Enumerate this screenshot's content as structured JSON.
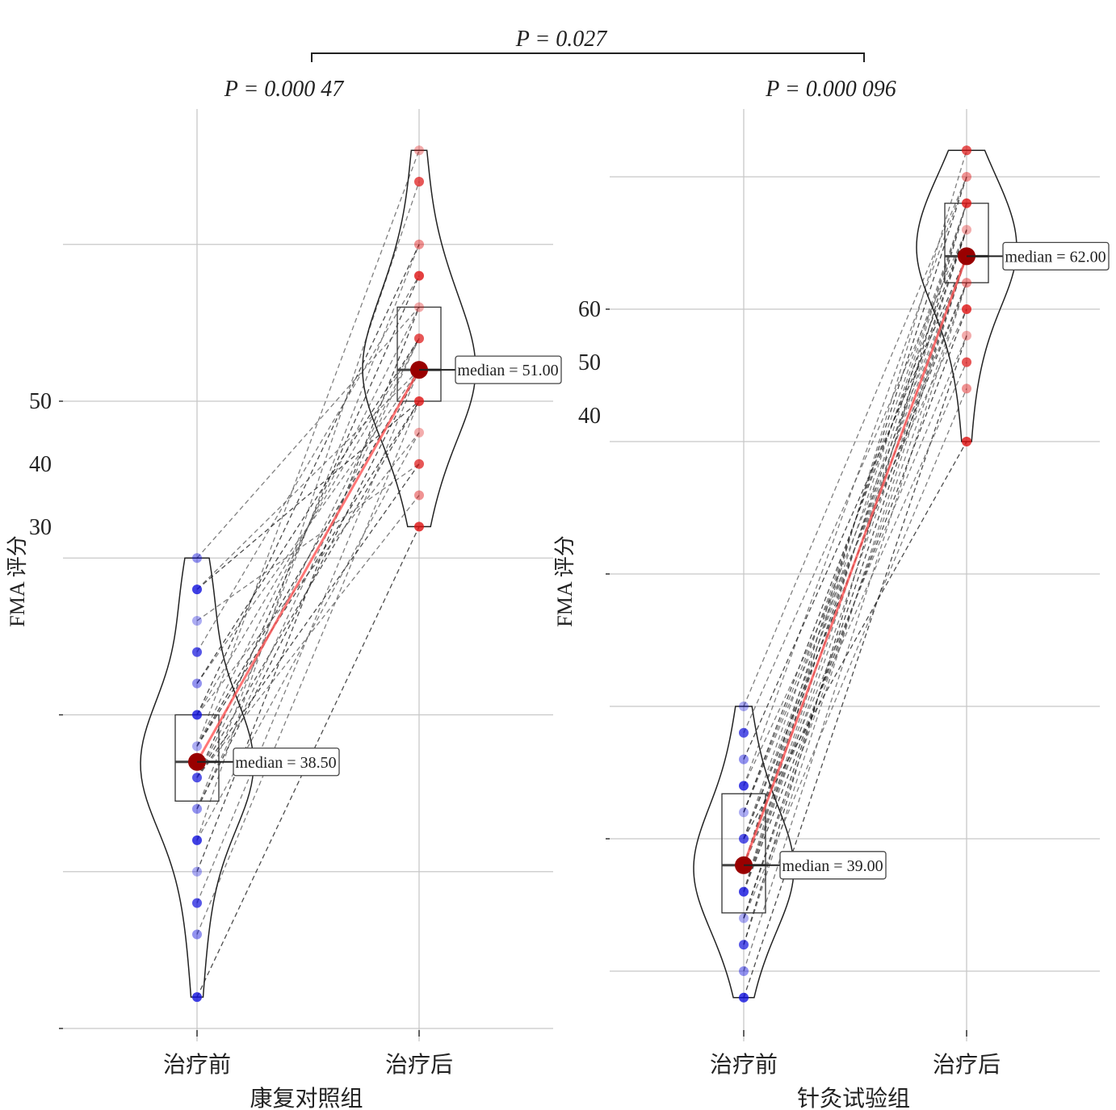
{
  "chart_data": [
    {
      "type": "violin-paired",
      "title": "康复对照组",
      "ylabel": "FMA 评分",
      "categories": [
        "治疗前",
        "治疗后"
      ],
      "tick_labels": [
        "50",
        "40",
        "30"
      ],
      "ylim": [
        29,
        59
      ],
      "grid_values": [
        55,
        50,
        45,
        40,
        35,
        30
      ],
      "tick_values": [
        50,
        40,
        30
      ],
      "p_value": "P = 0.000 47",
      "medians": [
        38.5,
        51.0
      ],
      "median_labels": [
        "median = 38.50",
        "median = 51.00"
      ],
      "quartiles": [
        [
          37.25,
          40
        ],
        [
          50,
          53
        ]
      ],
      "before": [
        31,
        33,
        34,
        35,
        36,
        36,
        37,
        37,
        37,
        38,
        38,
        38,
        38,
        38,
        38,
        39,
        39,
        39,
        39,
        39,
        40,
        40,
        40,
        41,
        41,
        42,
        43,
        44,
        44,
        45
      ],
      "after": [
        46,
        47,
        48,
        48,
        49,
        49,
        50,
        50,
        50,
        50,
        50,
        51,
        51,
        51,
        51,
        51,
        51,
        52,
        52,
        52,
        52,
        53,
        53,
        53,
        54,
        54,
        55,
        55,
        57,
        58
      ]
    },
    {
      "type": "violin-paired",
      "title": "针灸试验组",
      "ylabel": "FMA 评分",
      "categories": [
        "治疗前",
        "治疗后"
      ],
      "tick_labels": [
        "60",
        "50",
        "40"
      ],
      "ylim": [
        32,
        68
      ],
      "grid_values": [
        65,
        60,
        55,
        50,
        45,
        40,
        35
      ],
      "tick_values": [
        60,
        50,
        40
      ],
      "p_value": "P = 0.000 096",
      "medians": [
        39.0,
        62.0
      ],
      "median_labels": [
        "median = 39.00",
        "median = 62.00"
      ],
      "quartiles": [
        [
          37.2,
          41.7
        ],
        [
          61,
          64
        ]
      ],
      "before": [
        34,
        35,
        36,
        36,
        37,
        37,
        37,
        38,
        38,
        38,
        38,
        38,
        39,
        39,
        39,
        39,
        39,
        39,
        40,
        40,
        40,
        40,
        41,
        41,
        41,
        42,
        42,
        43,
        44,
        45
      ],
      "after": [
        55,
        57,
        58,
        59,
        59,
        60,
        60,
        61,
        61,
        61,
        61,
        62,
        62,
        62,
        62,
        62,
        62,
        62,
        63,
        63,
        63,
        63,
        64,
        64,
        64,
        64,
        65,
        65,
        65,
        66
      ]
    }
  ],
  "between_groups_p": "P = 0.027",
  "colors": {
    "before": "#1010dd",
    "after": "#dd1010",
    "median": "#990000",
    "median_line": "#ff5555"
  }
}
